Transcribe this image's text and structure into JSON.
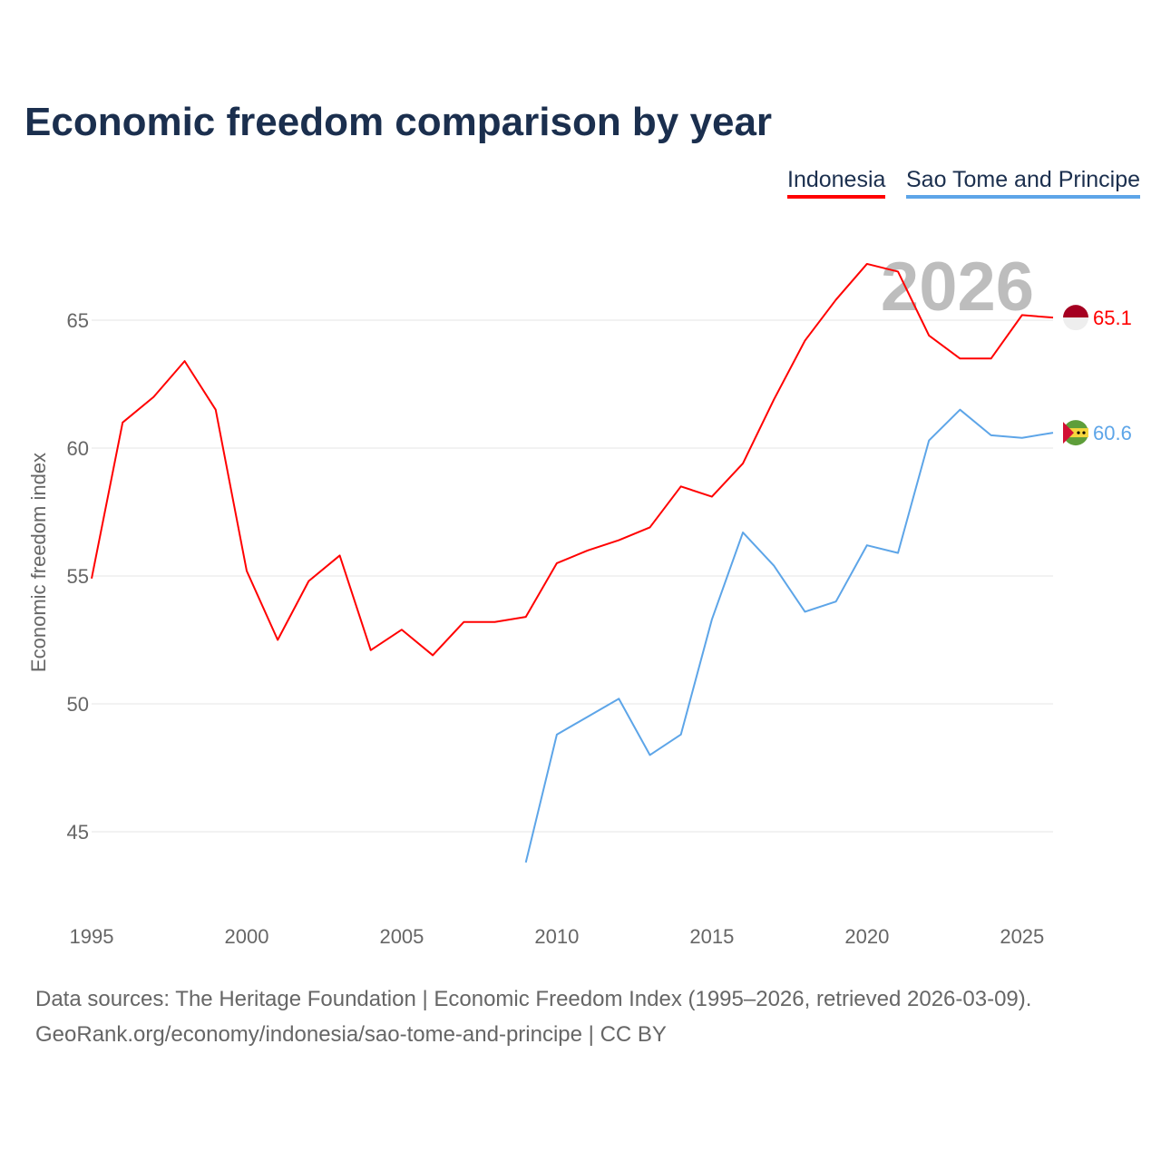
{
  "title": "Economic freedom comparison by year",
  "footer": {
    "line1": "Data sources: The Heritage Foundation | Economic Freedom Index (1995–2026, retrieved 2026-03-09).",
    "line2": "GeoRank.org/economy/indonesia/sao-tome-and-principe | CC BY"
  },
  "chart_data": {
    "type": "line",
    "title": "Economic freedom comparison by year",
    "xlabel": "",
    "ylabel": "Economic freedom index",
    "xlim": [
      1995,
      2026
    ],
    "ylim": [
      42,
      68
    ],
    "x_ticks": [
      1995,
      2000,
      2005,
      2010,
      2015,
      2020,
      2025
    ],
    "y_ticks": [
      45,
      50,
      55,
      60,
      65
    ],
    "grid": true,
    "legend_placement": "top-right",
    "year_watermark": "2026",
    "series": [
      {
        "name": "Indonesia",
        "color": "#ff0000",
        "end_label": "65.1",
        "x": [
          1995,
          1996,
          1997,
          1998,
          1999,
          2000,
          2001,
          2002,
          2003,
          2004,
          2005,
          2006,
          2007,
          2008,
          2009,
          2010,
          2011,
          2012,
          2013,
          2014,
          2015,
          2016,
          2017,
          2018,
          2019,
          2020,
          2021,
          2022,
          2023,
          2024,
          2025,
          2026
        ],
        "values": [
          54.9,
          61.0,
          62.0,
          63.4,
          61.5,
          55.2,
          52.5,
          54.8,
          55.8,
          52.1,
          52.9,
          51.9,
          53.2,
          53.2,
          53.4,
          55.5,
          56.0,
          56.4,
          56.9,
          58.5,
          58.1,
          59.4,
          61.9,
          64.2,
          65.8,
          67.2,
          66.9,
          64.4,
          63.5,
          63.5,
          65.2,
          65.1
        ]
      },
      {
        "name": "Sao Tome and Principe",
        "color": "#5da5e8",
        "end_label": "60.6",
        "x": [
          2009,
          2010,
          2011,
          2012,
          2013,
          2014,
          2015,
          2016,
          2017,
          2018,
          2019,
          2020,
          2021,
          2022,
          2023,
          2024,
          2025,
          2026
        ],
        "values": [
          43.8,
          48.8,
          49.5,
          50.2,
          48.0,
          48.8,
          53.3,
          56.7,
          55.4,
          53.6,
          54.0,
          56.2,
          55.9,
          60.3,
          61.5,
          60.5,
          60.4,
          60.6
        ]
      }
    ]
  }
}
